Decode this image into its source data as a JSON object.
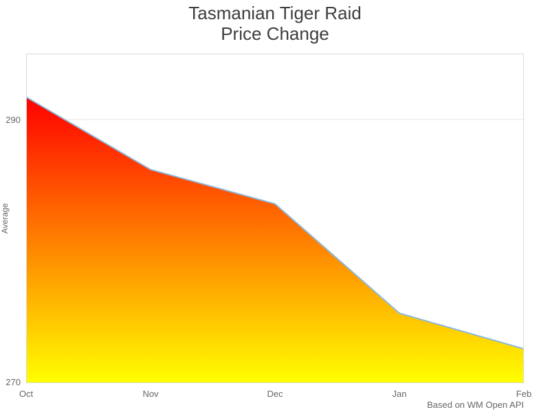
{
  "header": {
    "title_line1": "Tasmanian Tiger Raid",
    "title_line2": "Price Change"
  },
  "chart_data": {
    "type": "area",
    "title": "Tasmanian Tiger Raid Price Change",
    "categories": [
      "Oct",
      "Nov",
      "Dec",
      "Jan",
      "Feb"
    ],
    "series": [
      {
        "name": "Average",
        "values": [
          291.7,
          286.2,
          283.6,
          275.3,
          272.6
        ]
      }
    ],
    "xlabel": "",
    "ylabel": "Average",
    "ylim": [
      270,
      295
    ],
    "yticks": [
      270,
      290
    ],
    "grid": "horizontal gridline at 290 only",
    "legend": "none",
    "caption": "Based on WM Open API",
    "colors": {
      "area_gradient_top": "#ff0000",
      "area_gradient_bottom": "#ffff00",
      "line": "#8cb8dd",
      "gridline": "#e6e6e6",
      "plot_border": "#d9d9d9",
      "title_text": "#3d3d3d",
      "axis_text": "#666666",
      "background": "#ffffff"
    }
  }
}
